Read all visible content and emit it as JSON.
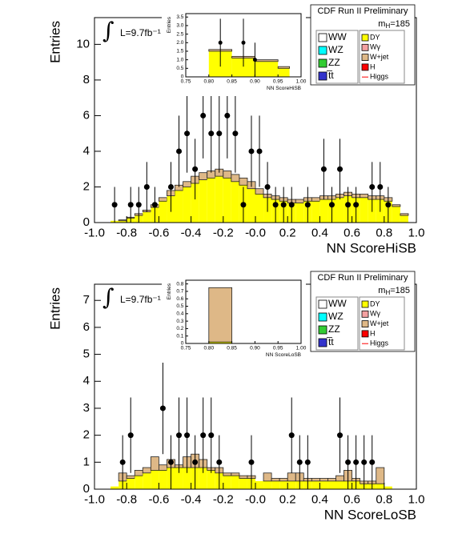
{
  "chart_data": [
    {
      "type": "histogram",
      "experiment": "CDF Run II Preliminary",
      "luminosity": "L=9.7fb⁻¹",
      "mass_label": [
        "m",
        "H",
        "=185"
      ],
      "y_label": "Entries",
      "x_label": "NN ScoreHiSB",
      "xlim": [
        -1,
        1
      ],
      "ylim": [
        0,
        11.5
      ],
      "xticks": [
        {
          "value": -1,
          "label": "-1.0"
        },
        -0.8,
        -0.6,
        -0.4,
        -0.2,
        {
          "value": 0,
          "label": "-0.0"
        },
        0.2,
        0.4,
        0.6,
        0.8,
        {
          "value": 1,
          "label": "1.0"
        }
      ],
      "yticks": [
        0,
        2,
        4,
        6,
        8,
        10
      ],
      "bins": [
        -0.9,
        -0.85,
        -0.8,
        -0.75,
        -0.7,
        -0.65,
        -0.6,
        -0.55,
        -0.5,
        -0.45,
        -0.4,
        -0.35,
        -0.3,
        -0.25,
        -0.2,
        -0.15,
        -0.1,
        -0.05,
        0,
        0.05,
        0.1,
        0.15,
        0.2,
        0.25,
        0.3,
        0.35,
        0.4,
        0.45,
        0.5,
        0.55,
        0.6,
        0.65,
        0.7,
        0.75,
        0.8,
        0.85,
        0.9,
        0.95
      ],
      "series": [
        {
          "name": "DY",
          "color": "#ffff00",
          "values": [
            0.1,
            0.1,
            0.25,
            0.4,
            0.6,
            0.85,
            1.2,
            1.5,
            1.8,
            2.0,
            2.2,
            2.4,
            2.5,
            2.6,
            2.5,
            2.3,
            2.1,
            1.9,
            1.6,
            1.4,
            1.3,
            1.2,
            1.1,
            1.1,
            1.2,
            1.2,
            1.3,
            1.3,
            1.4,
            1.5,
            1.4,
            1.4,
            1.3,
            1.3,
            1.2,
            0.9,
            0.4
          ]
        },
        {
          "name": "W+jet",
          "color": "#deb887",
          "values": [
            0,
            0.05,
            0.05,
            0.1,
            0.1,
            0.15,
            0.2,
            0.3,
            0.3,
            0.3,
            0.4,
            0.4,
            0.4,
            0.4,
            0.4,
            0.4,
            0.4,
            0.4,
            0.3,
            0.2,
            0.2,
            0.2,
            0.2,
            0.2,
            0.2,
            0.2,
            0.2,
            0.2,
            0.2,
            0.2,
            0.2,
            0.2,
            0.2,
            0.2,
            0.2,
            0.1,
            0.1
          ]
        }
      ],
      "data": {
        "x": [
          -0.875,
          -0.775,
          -0.725,
          -0.675,
          -0.625,
          -0.525,
          -0.475,
          -0.425,
          -0.375,
          -0.325,
          -0.275,
          -0.225,
          -0.175,
          -0.125,
          -0.075,
          -0.025,
          0.025,
          0.075,
          0.125,
          0.175,
          0.225,
          0.325,
          0.425,
          0.475,
          0.525,
          0.575,
          0.625,
          0.725,
          0.775,
          0.825
        ],
        "values": [
          1,
          1,
          1,
          2,
          1,
          2,
          4,
          5,
          3,
          6,
          5,
          5,
          6,
          5,
          1,
          4,
          4,
          2,
          1,
          1,
          1,
          1,
          3,
          1,
          3,
          1,
          1,
          2,
          2,
          1
        ],
        "errors": [
          1,
          1,
          1,
          1.4,
          1,
          1.4,
          2,
          2.2,
          1.7,
          2.4,
          2.2,
          2.2,
          2.4,
          2.2,
          1,
          2,
          2,
          1.4,
          1,
          1,
          1,
          1,
          1.7,
          1,
          1.7,
          1,
          1,
          1.4,
          1.4,
          1
        ]
      },
      "legend": [
        {
          "name": "WW",
          "color": "#ffffff"
        },
        {
          "name": "WZ",
          "color": "#00ffff"
        },
        {
          "name": "ZZ",
          "color": "#33cc33"
        },
        {
          "name": "t̅t",
          "color": "#3333cc"
        },
        {
          "name": "DY",
          "color": "#ffff00"
        },
        {
          "name": "Wγ",
          "color": "#f4a0a0"
        },
        {
          "name": "W+jet",
          "color": "#deb887"
        },
        {
          "name": "H",
          "color": "#ff0000"
        },
        {
          "name": "Higgs",
          "color": "#ff0000",
          "marker": "line"
        }
      ],
      "inset": {
        "y_label": "Entries",
        "x_label": "NN ScoreHiSB",
        "xlim": [
          0.75,
          1
        ],
        "ylim": [
          0,
          3.7
        ],
        "xticks": [
          0.75,
          {
            "value": 0.8,
            "label": "0.80"
          },
          0.85,
          {
            "value": 0.9,
            "label": "0.90"
          },
          0.95,
          {
            "value": 1,
            "label": "1.00"
          }
        ],
        "yticks": [
          0,
          0.5,
          {
            "value": 1,
            "label": "1.0"
          },
          1.5,
          {
            "value": 2,
            "label": "2.0"
          },
          2.5,
          {
            "value": 3,
            "label": "3.0"
          },
          3.5
        ],
        "bins": [
          0.8,
          0.85,
          0.9,
          0.95,
          0.975
        ],
        "series": [
          {
            "name": "DY",
            "color": "#ffff00",
            "values": [
              1.5,
              1.1,
              0.9,
              0.5
            ]
          },
          {
            "name": "W+jet",
            "color": "#deb887",
            "values": [
              0.1,
              0.1,
              0.1,
              0.1
            ]
          }
        ],
        "data": {
          "x": [
            0.825,
            0.875,
            0.9
          ],
          "values": [
            2,
            2,
            1
          ],
          "errors": [
            1.4,
            1.4,
            1
          ]
        }
      }
    },
    {
      "type": "histogram",
      "experiment": "CDF Run II Preliminary",
      "luminosity": "L=9.7fb⁻¹",
      "mass_label": [
        "m",
        "H",
        "=185"
      ],
      "y_label": "Entries",
      "x_label": "NN ScoreLoSB",
      "xlim": [
        -1,
        1
      ],
      "ylim": [
        0,
        7.6
      ],
      "xticks": [
        {
          "value": -1,
          "label": "-1.0"
        },
        -0.8,
        -0.6,
        -0.4,
        -0.2,
        {
          "value": 0,
          "label": "-0.0"
        },
        0.2,
        0.4,
        0.6,
        0.8,
        {
          "value": 1,
          "label": "1.0"
        }
      ],
      "yticks": [
        0,
        1,
        2,
        3,
        4,
        5,
        6,
        7
      ],
      "bins": [
        -0.9,
        -0.85,
        -0.8,
        -0.75,
        -0.7,
        -0.65,
        -0.6,
        -0.55,
        -0.5,
        -0.45,
        -0.4,
        -0.35,
        -0.3,
        -0.25,
        -0.2,
        -0.15,
        -0.1,
        -0.05,
        0,
        0.05,
        0.1,
        0.15,
        0.2,
        0.25,
        0.3,
        0.35,
        0.4,
        0.45,
        0.5,
        0.55,
        0.6,
        0.65,
        0.7,
        0.75,
        0.8,
        0.85
      ],
      "series": [
        {
          "name": "DY",
          "color": "#ffff00",
          "values": [
            0.1,
            0.3,
            0.4,
            0.5,
            0.6,
            0.7,
            0.7,
            0.8,
            0.8,
            0.8,
            0.8,
            0.8,
            0.7,
            0.6,
            0.5,
            0.5,
            0.4,
            0.4,
            0.3,
            0.3,
            0.3,
            0.3,
            0.3,
            0.3,
            0.3,
            0.3,
            0.3,
            0.3,
            0.3,
            0.3,
            0.3,
            0.2,
            0.2,
            0.2,
            0.1
          ]
        },
        {
          "name": "W+jet",
          "color": "#deb887",
          "values": [
            0,
            0.3,
            0.1,
            0.2,
            0.2,
            0.5,
            0.2,
            0.3,
            0.1,
            0.4,
            0.5,
            0.3,
            0.1,
            0.2,
            0.1,
            0.1,
            0.1,
            0.1,
            0,
            0.3,
            0.1,
            0.1,
            0.3,
            0.3,
            0.1,
            0.1,
            0.1,
            0.1,
            0.2,
            0.4,
            0.1,
            0.1,
            0.1,
            0.6,
            0
          ]
        }
      ],
      "data": {
        "x": [
          -0.825,
          -0.775,
          -0.575,
          -0.525,
          -0.475,
          -0.425,
          -0.375,
          -0.325,
          -0.275,
          -0.225,
          -0.025,
          0.225,
          0.275,
          0.325,
          0.525,
          0.575,
          0.625,
          0.675,
          0.725
        ],
        "values": [
          1,
          2,
          3,
          1,
          2,
          2,
          1,
          2,
          2,
          1,
          1,
          2,
          1,
          1,
          2,
          1,
          1,
          1,
          1
        ],
        "errors": [
          1,
          1.4,
          1.7,
          1,
          1.4,
          1.4,
          1,
          1.4,
          1.4,
          1,
          1,
          1.4,
          1,
          1,
          1.4,
          1,
          1,
          1,
          1
        ]
      },
      "legend": [
        {
          "name": "WW",
          "color": "#ffffff"
        },
        {
          "name": "WZ",
          "color": "#00ffff"
        },
        {
          "name": "ZZ",
          "color": "#33cc33"
        },
        {
          "name": "t̅t",
          "color": "#3333cc"
        },
        {
          "name": "DY",
          "color": "#ffff00"
        },
        {
          "name": "Wγ",
          "color": "#f4a0a0"
        },
        {
          "name": "W+jet",
          "color": "#deb887"
        },
        {
          "name": "H",
          "color": "#ff0000"
        },
        {
          "name": "Higgs",
          "color": "#ff0000",
          "marker": "line"
        }
      ],
      "inset": {
        "y_label": "Entries",
        "x_label": "NN ScoreLoSB",
        "xlim": [
          0.75,
          1
        ],
        "ylim": [
          0,
          0.85
        ],
        "xticks": [
          0.75,
          {
            "value": 0.8,
            "label": "0.80"
          },
          0.85,
          {
            "value": 0.9,
            "label": "0.90"
          },
          0.95,
          {
            "value": 1,
            "label": "1.00"
          }
        ],
        "yticks": [
          0,
          0.1,
          0.2,
          0.3,
          0.4,
          0.5,
          0.6,
          0.7,
          0.8
        ],
        "bins": [
          0.8,
          0.85
        ],
        "series": [
          {
            "name": "DY",
            "color": "#ffff00",
            "values": [
              0.02
            ]
          },
          {
            "name": "W+jet",
            "color": "#deb887",
            "values": [
              0.73
            ]
          }
        ],
        "data": {
          "x": [],
          "values": [],
          "errors": []
        }
      }
    }
  ]
}
